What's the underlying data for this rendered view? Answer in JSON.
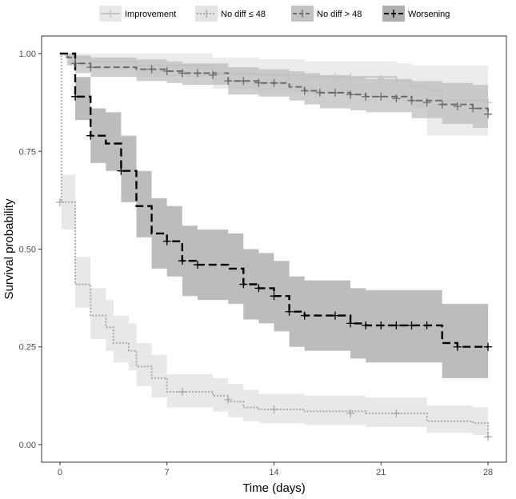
{
  "chart_data": {
    "type": "line",
    "subtype": "kaplan-meier step",
    "xlabel": "Time (days)",
    "ylabel": "Survival probability",
    "xlim": [
      -1.2,
      29.2
    ],
    "ylim": [
      -0.045,
      1.045
    ],
    "xticks": [
      0,
      7,
      14,
      21,
      28
    ],
    "xtick_labels": [
      "0",
      "7",
      "14",
      "21",
      "28"
    ],
    "yticks": [
      0.0,
      0.25,
      0.5,
      0.75,
      1.0
    ],
    "ytick_labels": [
      "0.00",
      "0.25",
      "0.50",
      "0.75",
      "1.00"
    ],
    "grid": false,
    "legend_position": "top",
    "series": [
      {
        "name": "Improvement",
        "line_color": "#c2c2c2",
        "band_color": "#e6e6e6",
        "dash": "solid",
        "steps": [
          [
            0,
            1.0
          ],
          [
            0.4,
            0.99
          ],
          [
            2,
            0.98
          ],
          [
            5,
            0.97
          ],
          [
            10,
            0.95
          ],
          [
            13,
            0.945
          ],
          [
            16,
            0.94
          ],
          [
            22,
            0.93
          ],
          [
            23,
            0.915
          ],
          [
            24,
            0.905
          ],
          [
            25,
            0.88
          ],
          [
            28,
            0.875
          ]
        ],
        "band": [
          [
            0,
            1.0,
            1.0
          ],
          [
            0.4,
            0.97,
            1.0
          ],
          [
            2,
            0.96,
            1.0
          ],
          [
            5,
            0.94,
            1.0
          ],
          [
            10,
            0.91,
            0.99
          ],
          [
            13,
            0.9,
            0.985
          ],
          [
            16,
            0.895,
            0.98
          ],
          [
            22,
            0.88,
            0.975
          ],
          [
            23,
            0.86,
            0.97
          ],
          [
            24,
            0.79,
            0.97
          ],
          [
            25,
            0.79,
            0.97
          ],
          [
            28,
            0.79,
            0.97
          ]
        ],
        "censors": [
          [
            10.5,
            0.95
          ],
          [
            13,
            0.945
          ],
          [
            15,
            0.94
          ],
          [
            16,
            0.94
          ],
          [
            18,
            0.94
          ],
          [
            19,
            0.94
          ],
          [
            21,
            0.935
          ],
          [
            22,
            0.93
          ],
          [
            28,
            0.875
          ]
        ]
      },
      {
        "name": "No diff ≤ 48",
        "line_color": "#a9a9a9",
        "band_color": "#e0e0e0",
        "dash": "2 2",
        "steps": [
          [
            0,
            1.0
          ],
          [
            0.1,
            0.62
          ],
          [
            1,
            0.41
          ],
          [
            2,
            0.33
          ],
          [
            3,
            0.3
          ],
          [
            3.5,
            0.26
          ],
          [
            4.5,
            0.24
          ],
          [
            5,
            0.2
          ],
          [
            6,
            0.17
          ],
          [
            7,
            0.135
          ],
          [
            10,
            0.125
          ],
          [
            11,
            0.11
          ],
          [
            12,
            0.095
          ],
          [
            13,
            0.09
          ],
          [
            16,
            0.085
          ],
          [
            20,
            0.08
          ],
          [
            24,
            0.06
          ],
          [
            27,
            0.055
          ],
          [
            28,
            0.02
          ]
        ],
        "band": [
          [
            0,
            1.0,
            1.0
          ],
          [
            0.1,
            0.55,
            0.69
          ],
          [
            1,
            0.35,
            0.48
          ],
          [
            2,
            0.27,
            0.4
          ],
          [
            3,
            0.24,
            0.37
          ],
          [
            3.5,
            0.21,
            0.33
          ],
          [
            4.5,
            0.19,
            0.31
          ],
          [
            5,
            0.15,
            0.26
          ],
          [
            6,
            0.12,
            0.23
          ],
          [
            7,
            0.095,
            0.18
          ],
          [
            10,
            0.085,
            0.17
          ],
          [
            11,
            0.07,
            0.155
          ],
          [
            12,
            0.06,
            0.14
          ],
          [
            13,
            0.055,
            0.13
          ],
          [
            16,
            0.05,
            0.125
          ],
          [
            20,
            0.045,
            0.12
          ],
          [
            24,
            0.03,
            0.1
          ],
          [
            27,
            0.025,
            0.095
          ],
          [
            28,
            0.0,
            0.06
          ]
        ],
        "censors": [
          [
            0,
            0.62
          ],
          [
            8,
            0.135
          ],
          [
            11,
            0.115
          ],
          [
            14,
            0.09
          ],
          [
            19,
            0.08
          ],
          [
            22,
            0.08
          ],
          [
            28,
            0.02
          ]
        ]
      },
      {
        "name": "No diff > 48",
        "line_color": "#6b6b6b",
        "band_color": "#bdbdbd",
        "dash": "8 4",
        "steps": [
          [
            0,
            1.0
          ],
          [
            0.5,
            0.99
          ],
          [
            1,
            0.975
          ],
          [
            2,
            0.965
          ],
          [
            5,
            0.96
          ],
          [
            7,
            0.955
          ],
          [
            8,
            0.95
          ],
          [
            11,
            0.93
          ],
          [
            13,
            0.925
          ],
          [
            15,
            0.915
          ],
          [
            16,
            0.905
          ],
          [
            17,
            0.9
          ],
          [
            19,
            0.895
          ],
          [
            20,
            0.89
          ],
          [
            23,
            0.88
          ],
          [
            25,
            0.87
          ],
          [
            27,
            0.86
          ],
          [
            28,
            0.845
          ]
        ],
        "band": [
          [
            0,
            1.0,
            1.0
          ],
          [
            0.5,
            0.97,
            1.0
          ],
          [
            1,
            0.95,
            0.995
          ],
          [
            2,
            0.94,
            0.99
          ],
          [
            5,
            0.93,
            0.985
          ],
          [
            7,
            0.925,
            0.98
          ],
          [
            8,
            0.92,
            0.975
          ],
          [
            11,
            0.895,
            0.965
          ],
          [
            13,
            0.89,
            0.96
          ],
          [
            15,
            0.88,
            0.955
          ],
          [
            16,
            0.87,
            0.95
          ],
          [
            17,
            0.86,
            0.945
          ],
          [
            19,
            0.855,
            0.94
          ],
          [
            20,
            0.85,
            0.935
          ],
          [
            23,
            0.835,
            0.93
          ],
          [
            25,
            0.82,
            0.925
          ],
          [
            27,
            0.81,
            0.92
          ],
          [
            28,
            0.79,
            0.91
          ]
        ],
        "censors": [
          [
            1,
            0.975
          ],
          [
            2,
            0.965
          ],
          [
            6,
            0.96
          ],
          [
            7,
            0.955
          ],
          [
            8,
            0.95
          ],
          [
            9,
            0.95
          ],
          [
            10,
            0.945
          ],
          [
            11,
            0.93
          ],
          [
            12,
            0.93
          ],
          [
            13,
            0.925
          ],
          [
            14,
            0.925
          ],
          [
            16,
            0.905
          ],
          [
            17,
            0.9
          ],
          [
            18,
            0.9
          ],
          [
            19,
            0.895
          ],
          [
            20,
            0.89
          ],
          [
            21,
            0.89
          ],
          [
            22,
            0.885
          ],
          [
            23,
            0.88
          ],
          [
            24,
            0.875
          ],
          [
            25,
            0.87
          ],
          [
            26,
            0.865
          ],
          [
            27,
            0.86
          ],
          [
            28,
            0.845
          ]
        ]
      },
      {
        "name": "Worsening",
        "line_color": "#000000",
        "band_color": "#a6a6a6",
        "dash": "10 5",
        "steps": [
          [
            0,
            1.0
          ],
          [
            1,
            0.89
          ],
          [
            2,
            0.79
          ],
          [
            3,
            0.77
          ],
          [
            4,
            0.7
          ],
          [
            5,
            0.61
          ],
          [
            6,
            0.54
          ],
          [
            7,
            0.52
          ],
          [
            8,
            0.47
          ],
          [
            9,
            0.46
          ],
          [
            11,
            0.45
          ],
          [
            12,
            0.41
          ],
          [
            13,
            0.4
          ],
          [
            14,
            0.38
          ],
          [
            15,
            0.34
          ],
          [
            16,
            0.33
          ],
          [
            19,
            0.31
          ],
          [
            20,
            0.305
          ],
          [
            25,
            0.26
          ],
          [
            26,
            0.25
          ],
          [
            28,
            0.25
          ]
        ],
        "band": [
          [
            0,
            1.0,
            1.0
          ],
          [
            1,
            0.83,
            0.94
          ],
          [
            2,
            0.72,
            0.86
          ],
          [
            3,
            0.7,
            0.85
          ],
          [
            4,
            0.62,
            0.79
          ],
          [
            5,
            0.53,
            0.7
          ],
          [
            6,
            0.45,
            0.63
          ],
          [
            7,
            0.43,
            0.61
          ],
          [
            8,
            0.38,
            0.56
          ],
          [
            9,
            0.37,
            0.55
          ],
          [
            11,
            0.36,
            0.54
          ],
          [
            12,
            0.32,
            0.5
          ],
          [
            13,
            0.31,
            0.49
          ],
          [
            14,
            0.29,
            0.47
          ],
          [
            15,
            0.25,
            0.43
          ],
          [
            16,
            0.24,
            0.42
          ],
          [
            19,
            0.22,
            0.4
          ],
          [
            20,
            0.21,
            0.395
          ],
          [
            25,
            0.17,
            0.36
          ],
          [
            26,
            0.17,
            0.36
          ],
          [
            28,
            0.17,
            0.36
          ]
        ],
        "censors": [
          [
            1,
            0.89
          ],
          [
            2,
            0.79
          ],
          [
            4,
            0.7
          ],
          [
            7,
            0.52
          ],
          [
            8,
            0.47
          ],
          [
            9,
            0.46
          ],
          [
            12,
            0.41
          ],
          [
            13,
            0.4
          ],
          [
            14,
            0.38
          ],
          [
            15,
            0.34
          ],
          [
            16,
            0.33
          ],
          [
            18,
            0.33
          ],
          [
            19,
            0.31
          ],
          [
            20,
            0.305
          ],
          [
            21,
            0.305
          ],
          [
            22,
            0.305
          ],
          [
            23,
            0.305
          ],
          [
            24,
            0.305
          ],
          [
            26,
            0.25
          ],
          [
            28,
            0.25
          ]
        ]
      }
    ]
  }
}
